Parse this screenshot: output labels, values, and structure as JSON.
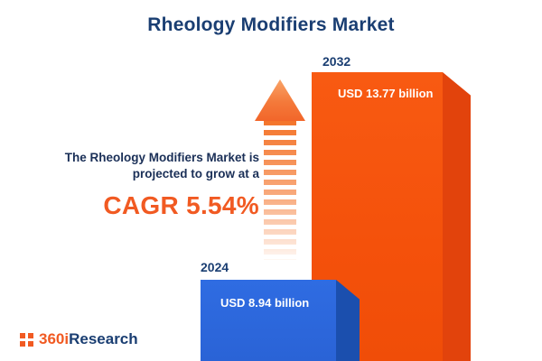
{
  "title": "Rheology Modifiers Market",
  "annotation": {
    "line1": "The Rheology Modifiers Market is",
    "line2": "projected to grow at a",
    "cagr": "CAGR 5.54%"
  },
  "chart_data": {
    "type": "bar",
    "title": "Rheology Modifiers Market",
    "categories": [
      "2024",
      "2032"
    ],
    "values": [
      8.94,
      13.77
    ],
    "value_labels": [
      "USD 8.94 billion",
      "USD 13.77 billion"
    ],
    "unit": "USD billion",
    "cagr_percent": 5.54,
    "ylim": [
      0,
      14
    ],
    "legend": "none",
    "grid": false,
    "colors": {
      "bar_2024": "#2E6BE0",
      "bar_2032": "#F4510B",
      "accent": "#F15A22",
      "heading": "#1A3E72"
    }
  },
  "logo": {
    "prefix": "360i",
    "suffix": "Research"
  }
}
